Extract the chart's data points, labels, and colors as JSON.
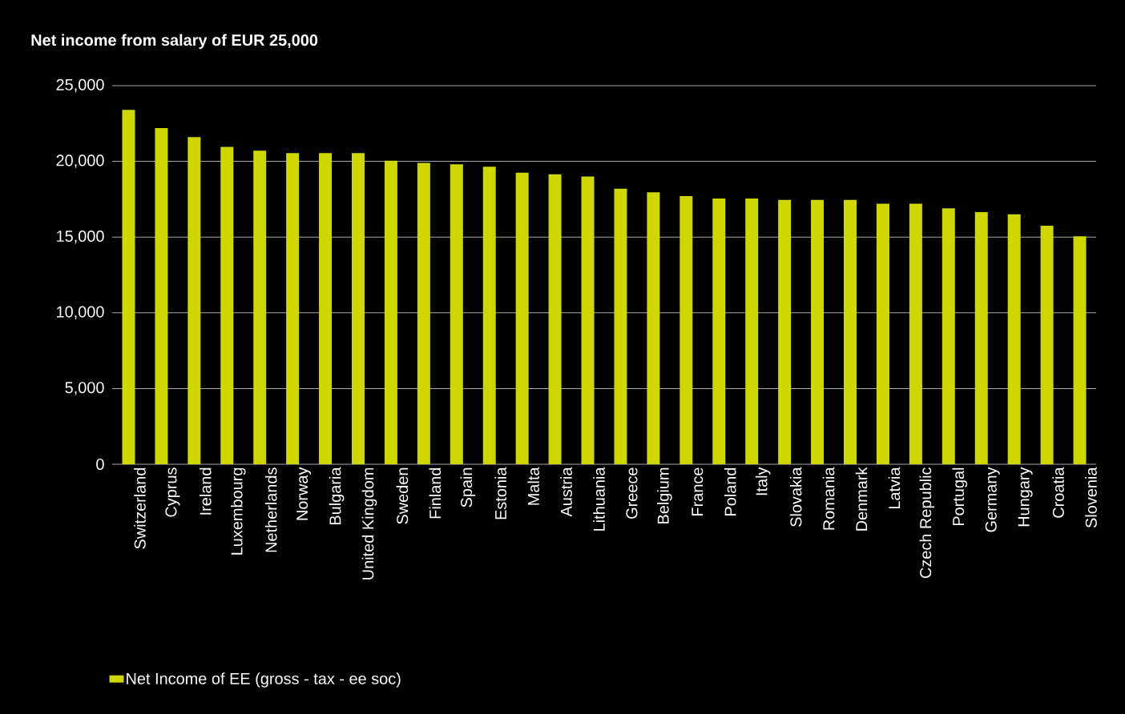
{
  "chart_data": {
    "type": "bar",
    "title": "Net income from salary of EUR 25,000",
    "categories": [
      "Switzerland",
      "Cyprus",
      "Ireland",
      "Luxembourg",
      "Netherlands",
      "Norway",
      "Bulgaria",
      "United Kingdom",
      "Sweden",
      "Finland",
      "Spain",
      "Estonia",
      "Malta",
      "Austria",
      "Lithuania",
      "Greece",
      "Belgium",
      "France",
      "Poland",
      "Italy",
      "Slovakia",
      "Romania",
      "Denmark",
      "Latvia",
      "Czech Republic",
      "Portugal",
      "Germany",
      "Hungary",
      "Croatia",
      "Slovenia"
    ],
    "series": [
      {
        "name": "Net Income of EE (gross - tax - ee soc)",
        "color": "#cfd600",
        "values": [
          23400,
          22200,
          21600,
          20950,
          20700,
          20550,
          20550,
          20550,
          20050,
          19900,
          19800,
          19650,
          19250,
          19150,
          19000,
          18200,
          17950,
          17700,
          17550,
          17550,
          17450,
          17450,
          17450,
          17200,
          17200,
          16900,
          16650,
          16500,
          15750,
          15050
        ]
      }
    ],
    "ylim": [
      0,
      25000
    ],
    "yticks": [
      0,
      {
        "value": 5000,
        "label": "5,000"
      },
      {
        "value": 10000,
        "label": "10,000"
      },
      {
        "value": 15000,
        "label": "15,000"
      },
      {
        "value": 20000,
        "label": "20,000"
      },
      {
        "value": 25000,
        "label": "25,000"
      }
    ],
    "grid": "y",
    "legend": "bottom left"
  }
}
